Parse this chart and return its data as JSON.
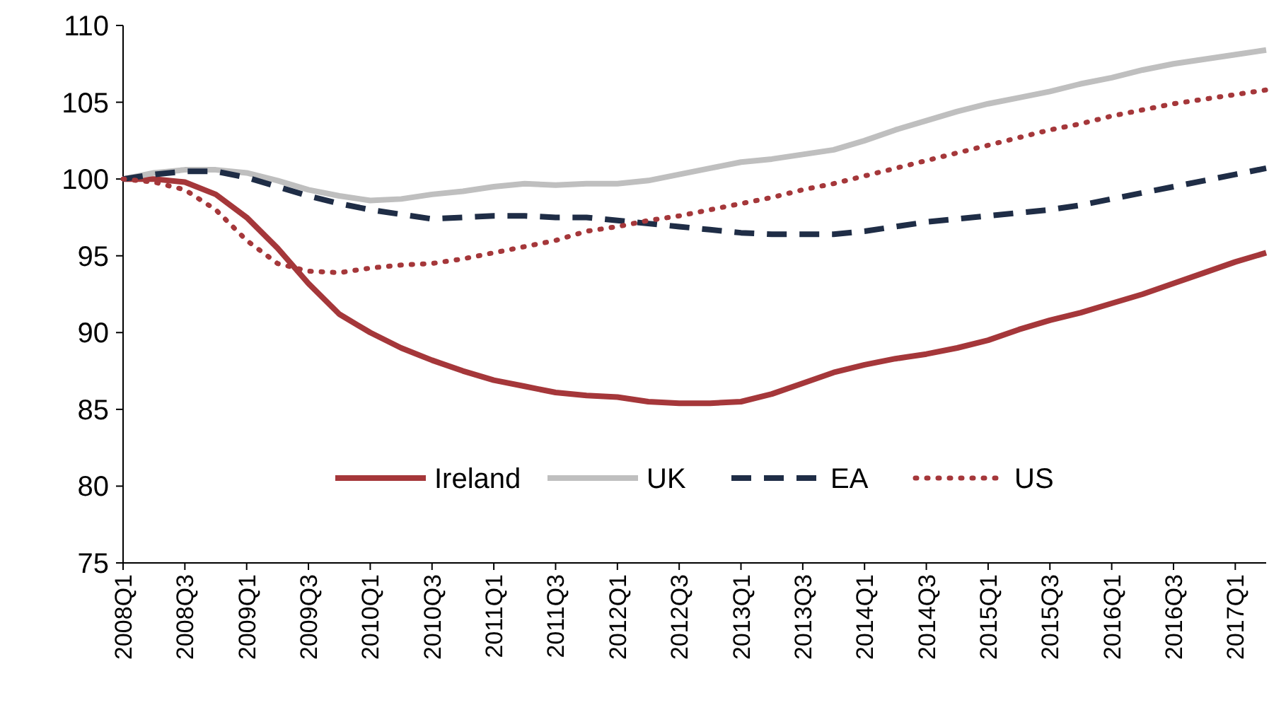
{
  "chart_data": {
    "type": "line",
    "categories": [
      "2008Q1",
      null,
      "2008Q3",
      null,
      "2009Q1",
      null,
      "2009Q3",
      null,
      "2010Q1",
      null,
      "2010Q3",
      null,
      "2011Q1",
      null,
      "2011Q3",
      null,
      "2012Q1",
      null,
      "2012Q3",
      null,
      "2013Q1",
      null,
      "2013Q3",
      null,
      "2014Q1",
      null,
      "2014Q3",
      null,
      "2015Q1",
      null,
      "2015Q3",
      null,
      "2016Q1",
      null,
      "2016Q3",
      null,
      "2017Q1",
      null
    ],
    "ylim": [
      75,
      110
    ],
    "yticks": [
      75,
      80,
      85,
      90,
      95,
      100,
      105,
      110
    ],
    "grid": false,
    "legend": "bottom",
    "marker": "none",
    "series": [
      {
        "name": "Ireland",
        "color": "#a5373a",
        "line_style": "solid",
        "values": [
          100,
          100,
          99.8,
          99,
          97.5,
          95.5,
          93.2,
          91.2,
          90,
          89,
          88.2,
          87.5,
          86.9,
          86.5,
          86.1,
          85.9,
          85.8,
          85.5,
          85.4,
          85.4,
          85.5,
          86,
          86.7,
          87.4,
          87.9,
          88.3,
          88.6,
          89,
          89.5,
          90.2,
          90.8,
          91.3,
          91.9,
          92.5,
          93.2,
          93.9,
          94.6,
          95.2
        ]
      },
      {
        "name": "UK",
        "color": "#bfbfbf",
        "line_style": "solid",
        "values": [
          100,
          100.4,
          100.6,
          100.6,
          100.4,
          99.9,
          99.3,
          98.9,
          98.6,
          98.7,
          99,
          99.2,
          99.5,
          99.7,
          99.6,
          99.7,
          99.7,
          99.9,
          100.3,
          100.7,
          101.1,
          101.3,
          101.6,
          101.9,
          102.5,
          103.2,
          103.8,
          104.4,
          104.9,
          105.3,
          105.7,
          106.2,
          106.6,
          107.1,
          107.5,
          107.8,
          108.1,
          108.4
        ]
      },
      {
        "name": "EA",
        "color": "#1f2d46",
        "line_style": "dashed",
        "values": [
          100,
          100.3,
          100.5,
          100.5,
          100.1,
          99.5,
          98.9,
          98.4,
          98,
          97.7,
          97.4,
          97.5,
          97.6,
          97.6,
          97.5,
          97.5,
          97.3,
          97.1,
          96.9,
          96.7,
          96.5,
          96.4,
          96.4,
          96.4,
          96.6,
          96.9,
          97.2,
          97.4,
          97.6,
          97.8,
          98,
          98.3,
          98.7,
          99.1,
          99.5,
          99.9,
          100.3,
          100.7
        ]
      },
      {
        "name": "US",
        "color": "#a5373a",
        "line_style": "dotted",
        "values": [
          100,
          99.8,
          99.3,
          98,
          96,
          94.5,
          94,
          93.9,
          94.2,
          94.4,
          94.5,
          94.8,
          95.2,
          95.6,
          96,
          96.6,
          96.9,
          97.3,
          97.6,
          98,
          98.4,
          98.8,
          99.3,
          99.7,
          100.2,
          100.7,
          101.2,
          101.7,
          102.2,
          102.7,
          103.2,
          103.6,
          104.1,
          104.5,
          104.9,
          105.2,
          105.5,
          105.8
        ]
      }
    ]
  }
}
